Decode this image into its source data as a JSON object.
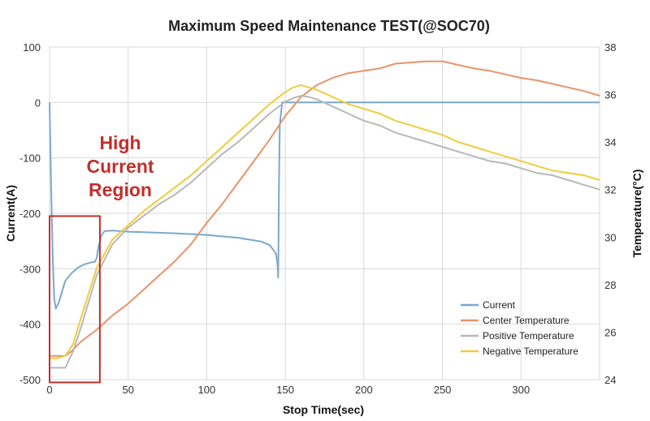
{
  "chart_data": {
    "type": "line",
    "title": "Maximum Speed Maintenance TEST(@SOC70)",
    "xlabel": "Stop Time(sec)",
    "ylabel": "Current(A)",
    "y2label": "Temperature(°C)",
    "xlim": [
      0,
      350
    ],
    "ylim": [
      -500,
      100
    ],
    "y2lim": [
      24,
      38
    ],
    "x_ticks": [
      0,
      50,
      100,
      150,
      200,
      250,
      300
    ],
    "y_ticks": [
      100,
      0,
      -100,
      -200,
      -300,
      -400,
      -500
    ],
    "y2_ticks": [
      38,
      36,
      34,
      32,
      30,
      28,
      26,
      24
    ],
    "grid": true,
    "legend_position": "bottom-right",
    "annotation": {
      "lines": [
        "High",
        "Current",
        "Region"
      ],
      "color": "#c0302c",
      "box_x": [
        0,
        32
      ],
      "box_y": [
        -505,
        -205
      ]
    },
    "series": [
      {
        "name": "Current",
        "axis": "left",
        "color": "#7aa8cf",
        "x": [
          0,
          1,
          2,
          3,
          4,
          6,
          8,
          10,
          14,
          18,
          22,
          26,
          29,
          30,
          31,
          33,
          35,
          40,
          50,
          60,
          80,
          100,
          120,
          135,
          140,
          144,
          145,
          145.5,
          146,
          146.5,
          148,
          155,
          200,
          250,
          300,
          350
        ],
        "y": [
          0,
          -150,
          -280,
          -355,
          -372,
          -360,
          -340,
          -322,
          -308,
          -298,
          -292,
          -289,
          -287,
          -280,
          -262,
          -240,
          -232,
          -231,
          -233,
          -234,
          -236,
          -239,
          -244,
          -251,
          -257,
          -272,
          -290,
          -316,
          -140,
          -40,
          0,
          0,
          0,
          0,
          0,
          0
        ]
      },
      {
        "name": "Center Temperature",
        "axis": "right",
        "color": "#e8936a",
        "x": [
          0,
          5,
          10,
          14,
          20,
          30,
          40,
          50,
          60,
          70,
          80,
          90,
          100,
          110,
          120,
          130,
          140,
          150,
          160,
          170,
          180,
          190,
          200,
          210,
          220,
          230,
          240,
          250,
          260,
          270,
          280,
          290,
          300,
          310,
          320,
          330,
          340,
          350
        ],
        "y": [
          25,
          25,
          25,
          25.2,
          25.6,
          26.1,
          26.7,
          27.2,
          27.8,
          28.4,
          29,
          29.7,
          30.6,
          31.4,
          32.3,
          33.2,
          34.1,
          35.1,
          35.9,
          36.4,
          36.7,
          36.9,
          37.0,
          37.1,
          37.3,
          37.35,
          37.4,
          37.4,
          37.25,
          37.1,
          37.0,
          36.85,
          36.7,
          36.6,
          36.45,
          36.3,
          36.15,
          35.95
        ]
      },
      {
        "name": "Positive Temperature",
        "axis": "right",
        "color": "#b8b8b8",
        "x": [
          0,
          5,
          10,
          15,
          20,
          30,
          40,
          50,
          60,
          70,
          80,
          90,
          100,
          110,
          120,
          130,
          140,
          150,
          155,
          160,
          165,
          170,
          180,
          190,
          200,
          210,
          220,
          230,
          240,
          250,
          260,
          270,
          280,
          290,
          300,
          310,
          320,
          330,
          340,
          350
        ],
        "y": [
          24.5,
          24.5,
          24.5,
          25.2,
          26.2,
          28.4,
          29.7,
          30.4,
          30.9,
          31.4,
          31.8,
          32.3,
          32.9,
          33.5,
          34.0,
          34.6,
          35.2,
          35.7,
          35.85,
          35.95,
          35.9,
          35.8,
          35.5,
          35.2,
          34.9,
          34.7,
          34.4,
          34.2,
          34.0,
          33.8,
          33.6,
          33.4,
          33.2,
          33.1,
          32.9,
          32.7,
          32.6,
          32.4,
          32.2,
          32.0
        ]
      },
      {
        "name": "Negative Temperature",
        "axis": "right",
        "color": "#f0cc3c",
        "x": [
          0,
          5,
          10,
          15,
          20,
          30,
          40,
          50,
          60,
          70,
          80,
          90,
          100,
          110,
          120,
          130,
          140,
          150,
          155,
          160,
          165,
          170,
          180,
          190,
          200,
          210,
          220,
          230,
          240,
          250,
          260,
          270,
          280,
          290,
          300,
          310,
          320,
          330,
          340,
          350
        ],
        "y": [
          24.9,
          24.9,
          25.0,
          25.5,
          26.6,
          28.7,
          29.9,
          30.5,
          31.1,
          31.6,
          32.1,
          32.6,
          33.2,
          33.8,
          34.4,
          35.0,
          35.6,
          36.1,
          36.3,
          36.4,
          36.3,
          36.2,
          35.9,
          35.6,
          35.4,
          35.2,
          34.9,
          34.7,
          34.5,
          34.3,
          34.0,
          33.8,
          33.6,
          33.4,
          33.2,
          33.0,
          32.8,
          32.7,
          32.6,
          32.4
        ]
      }
    ]
  }
}
